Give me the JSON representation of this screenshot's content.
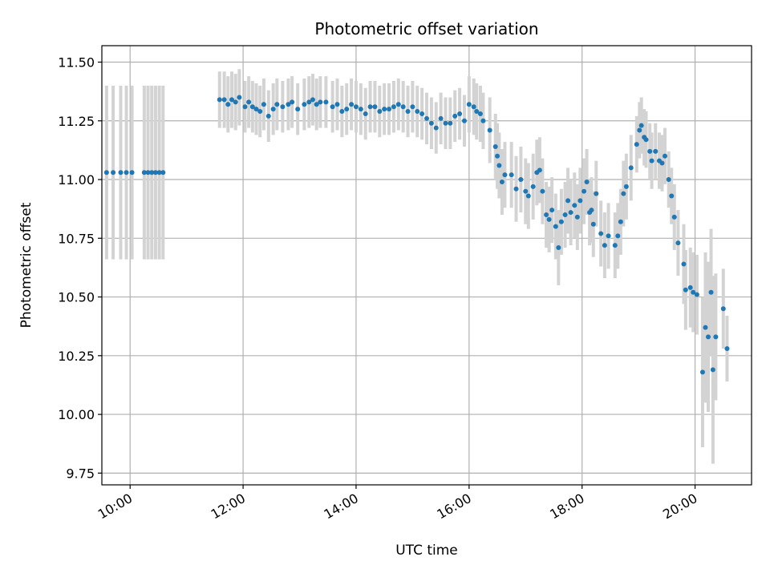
{
  "chart_data": {
    "type": "scatter",
    "title": "Photometric offset variation",
    "xlabel": "UTC time",
    "ylabel": "Photometric offset",
    "xlim": [
      "09:30",
      "21:00"
    ],
    "ylim": [
      9.7,
      11.57
    ],
    "x_ticks": [
      "10:00",
      "12:00",
      "14:00",
      "16:00",
      "18:00",
      "20:00"
    ],
    "y_ticks": [
      "9.75",
      "10.00",
      "10.25",
      "10.50",
      "10.75",
      "11.00",
      "11.25",
      "11.50"
    ],
    "grid": true,
    "colors": {
      "point": "#1f77b4",
      "errorbar": "#d3d3d3",
      "grid": "#b0b0b0"
    },
    "series": [
      {
        "points": [
          {
            "t": "09:35",
            "y": 11.03,
            "err": 0.37
          },
          {
            "t": "09:42",
            "y": 11.03,
            "err": 0.37
          },
          {
            "t": "09:50",
            "y": 11.03,
            "err": 0.37
          },
          {
            "t": "09:56",
            "y": 11.03,
            "err": 0.37
          },
          {
            "t": "10:02",
            "y": 11.03,
            "err": 0.37
          },
          {
            "t": "10:15",
            "y": 11.03,
            "err": 0.37
          },
          {
            "t": "10:19",
            "y": 11.03,
            "err": 0.37
          },
          {
            "t": "10:23",
            "y": 11.03,
            "err": 0.37
          },
          {
            "t": "10:27",
            "y": 11.03,
            "err": 0.37
          },
          {
            "t": "10:31",
            "y": 11.03,
            "err": 0.37
          },
          {
            "t": "10:35",
            "y": 11.03,
            "err": 0.37
          },
          {
            "t": "11:35",
            "y": 11.34,
            "err": 0.12
          },
          {
            "t": "11:40",
            "y": 11.34,
            "err": 0.12
          },
          {
            "t": "11:44",
            "y": 11.32,
            "err": 0.12
          },
          {
            "t": "11:48",
            "y": 11.34,
            "err": 0.12
          },
          {
            "t": "11:52",
            "y": 11.33,
            "err": 0.12
          },
          {
            "t": "11:56",
            "y": 11.35,
            "err": 0.12
          },
          {
            "t": "12:02",
            "y": 11.31,
            "err": 0.11
          },
          {
            "t": "12:06",
            "y": 11.33,
            "err": 0.11
          },
          {
            "t": "12:10",
            "y": 11.31,
            "err": 0.11
          },
          {
            "t": "12:14",
            "y": 11.3,
            "err": 0.11
          },
          {
            "t": "12:18",
            "y": 11.29,
            "err": 0.11
          },
          {
            "t": "12:22",
            "y": 11.32,
            "err": 0.11
          },
          {
            "t": "12:27",
            "y": 11.27,
            "err": 0.11
          },
          {
            "t": "12:32",
            "y": 11.3,
            "err": 0.11
          },
          {
            "t": "12:36",
            "y": 11.32,
            "err": 0.11
          },
          {
            "t": "12:42",
            "y": 11.31,
            "err": 0.11
          },
          {
            "t": "12:48",
            "y": 11.32,
            "err": 0.11
          },
          {
            "t": "12:52",
            "y": 11.33,
            "err": 0.11
          },
          {
            "t": "12:58",
            "y": 11.3,
            "err": 0.11
          },
          {
            "t": "13:05",
            "y": 11.32,
            "err": 0.11
          },
          {
            "t": "13:10",
            "y": 11.33,
            "err": 0.11
          },
          {
            "t": "13:14",
            "y": 11.34,
            "err": 0.11
          },
          {
            "t": "13:18",
            "y": 11.32,
            "err": 0.11
          },
          {
            "t": "13:22",
            "y": 11.33,
            "err": 0.11
          },
          {
            "t": "13:28",
            "y": 11.33,
            "err": 0.11
          },
          {
            "t": "13:35",
            "y": 11.31,
            "err": 0.11
          },
          {
            "t": "13:40",
            "y": 11.32,
            "err": 0.11
          },
          {
            "t": "13:45",
            "y": 11.29,
            "err": 0.11
          },
          {
            "t": "13:50",
            "y": 11.3,
            "err": 0.11
          },
          {
            "t": "13:55",
            "y": 11.32,
            "err": 0.11
          },
          {
            "t": "14:00",
            "y": 11.31,
            "err": 0.11
          },
          {
            "t": "14:05",
            "y": 11.3,
            "err": 0.11
          },
          {
            "t": "14:10",
            "y": 11.28,
            "err": 0.11
          },
          {
            "t": "14:15",
            "y": 11.31,
            "err": 0.11
          },
          {
            "t": "14:20",
            "y": 11.31,
            "err": 0.11
          },
          {
            "t": "14:25",
            "y": 11.29,
            "err": 0.11
          },
          {
            "t": "14:30",
            "y": 11.3,
            "err": 0.11
          },
          {
            "t": "14:35",
            "y": 11.3,
            "err": 0.11
          },
          {
            "t": "14:40",
            "y": 11.31,
            "err": 0.11
          },
          {
            "t": "14:45",
            "y": 11.32,
            "err": 0.11
          },
          {
            "t": "14:50",
            "y": 11.31,
            "err": 0.11
          },
          {
            "t": "14:55",
            "y": 11.29,
            "err": 0.11
          },
          {
            "t": "15:00",
            "y": 11.31,
            "err": 0.11
          },
          {
            "t": "15:05",
            "y": 11.29,
            "err": 0.11
          },
          {
            "t": "15:10",
            "y": 11.28,
            "err": 0.11
          },
          {
            "t": "15:15",
            "y": 11.26,
            "err": 0.11
          },
          {
            "t": "15:20",
            "y": 11.24,
            "err": 0.11
          },
          {
            "t": "15:25",
            "y": 11.22,
            "err": 0.11
          },
          {
            "t": "15:30",
            "y": 11.26,
            "err": 0.11
          },
          {
            "t": "15:35",
            "y": 11.24,
            "err": 0.11
          },
          {
            "t": "15:40",
            "y": 11.24,
            "err": 0.11
          },
          {
            "t": "15:45",
            "y": 11.27,
            "err": 0.11
          },
          {
            "t": "15:50",
            "y": 11.28,
            "err": 0.11
          },
          {
            "t": "15:55",
            "y": 11.25,
            "err": 0.11
          },
          {
            "t": "16:00",
            "y": 11.32,
            "err": 0.12
          },
          {
            "t": "16:05",
            "y": 11.31,
            "err": 0.12
          },
          {
            "t": "16:08",
            "y": 11.29,
            "err": 0.12
          },
          {
            "t": "16:12",
            "y": 11.28,
            "err": 0.12
          },
          {
            "t": "16:15",
            "y": 11.25,
            "err": 0.12
          },
          {
            "t": "16:22",
            "y": 11.21,
            "err": 0.14
          },
          {
            "t": "16:28",
            "y": 11.14,
            "err": 0.14
          },
          {
            "t": "16:30",
            "y": 11.1,
            "err": 0.14
          },
          {
            "t": "16:32",
            "y": 11.06,
            "err": 0.14
          },
          {
            "t": "16:35",
            "y": 10.99,
            "err": 0.14
          },
          {
            "t": "16:38",
            "y": 11.02,
            "err": 0.14
          },
          {
            "t": "16:45",
            "y": 11.02,
            "err": 0.14
          },
          {
            "t": "16:50",
            "y": 10.96,
            "err": 0.14
          },
          {
            "t": "16:55",
            "y": 11.0,
            "err": 0.14
          },
          {
            "t": "17:00",
            "y": 10.95,
            "err": 0.14
          },
          {
            "t": "17:03",
            "y": 10.93,
            "err": 0.14
          },
          {
            "t": "17:08",
            "y": 10.97,
            "err": 0.14
          },
          {
            "t": "17:12",
            "y": 11.03,
            "err": 0.14
          },
          {
            "t": "17:15",
            "y": 11.04,
            "err": 0.14
          },
          {
            "t": "17:18",
            "y": 10.95,
            "err": 0.14
          },
          {
            "t": "17:22",
            "y": 10.85,
            "err": 0.14
          },
          {
            "t": "17:25",
            "y": 10.83,
            "err": 0.14
          },
          {
            "t": "17:28",
            "y": 10.87,
            "err": 0.14
          },
          {
            "t": "17:32",
            "y": 10.8,
            "err": 0.14
          },
          {
            "t": "17:35",
            "y": 10.71,
            "err": 0.16
          },
          {
            "t": "17:38",
            "y": 10.82,
            "err": 0.14
          },
          {
            "t": "17:42",
            "y": 10.85,
            "err": 0.14
          },
          {
            "t": "17:45",
            "y": 10.91,
            "err": 0.14
          },
          {
            "t": "17:48",
            "y": 10.86,
            "err": 0.14
          },
          {
            "t": "17:52",
            "y": 10.89,
            "err": 0.14
          },
          {
            "t": "17:55",
            "y": 10.84,
            "err": 0.14
          },
          {
            "t": "17:58",
            "y": 10.91,
            "err": 0.14
          },
          {
            "t": "18:02",
            "y": 10.95,
            "err": 0.14
          },
          {
            "t": "18:05",
            "y": 10.99,
            "err": 0.14
          },
          {
            "t": "18:08",
            "y": 10.86,
            "err": 0.14
          },
          {
            "t": "18:10",
            "y": 10.87,
            "err": 0.14
          },
          {
            "t": "18:12",
            "y": 10.81,
            "err": 0.14
          },
          {
            "t": "18:15",
            "y": 10.94,
            "err": 0.14
          },
          {
            "t": "18:20",
            "y": 10.77,
            "err": 0.14
          },
          {
            "t": "18:24",
            "y": 10.72,
            "err": 0.14
          },
          {
            "t": "18:28",
            "y": 10.76,
            "err": 0.14
          },
          {
            "t": "18:35",
            "y": 10.72,
            "err": 0.14
          },
          {
            "t": "18:38",
            "y": 10.76,
            "err": 0.14
          },
          {
            "t": "18:41",
            "y": 10.82,
            "err": 0.14
          },
          {
            "t": "18:44",
            "y": 10.94,
            "err": 0.14
          },
          {
            "t": "18:47",
            "y": 10.97,
            "err": 0.14
          },
          {
            "t": "18:52",
            "y": 11.05,
            "err": 0.14
          },
          {
            "t": "18:58",
            "y": 11.15,
            "err": 0.12
          },
          {
            "t": "19:01",
            "y": 11.21,
            "err": 0.12
          },
          {
            "t": "19:03",
            "y": 11.23,
            "err": 0.12
          },
          {
            "t": "19:06",
            "y": 11.18,
            "err": 0.12
          },
          {
            "t": "19:08",
            "y": 11.17,
            "err": 0.12
          },
          {
            "t": "19:12",
            "y": 11.12,
            "err": 0.12
          },
          {
            "t": "19:14",
            "y": 11.08,
            "err": 0.12
          },
          {
            "t": "19:18",
            "y": 11.12,
            "err": 0.12
          },
          {
            "t": "19:22",
            "y": 11.08,
            "err": 0.12
          },
          {
            "t": "19:25",
            "y": 11.07,
            "err": 0.12
          },
          {
            "t": "19:28",
            "y": 11.1,
            "err": 0.12
          },
          {
            "t": "19:32",
            "y": 11.0,
            "err": 0.12
          },
          {
            "t": "19:35",
            "y": 10.93,
            "err": 0.12
          },
          {
            "t": "19:38",
            "y": 10.84,
            "err": 0.14
          },
          {
            "t": "19:42",
            "y": 10.73,
            "err": 0.14
          },
          {
            "t": "19:48",
            "y": 10.64,
            "err": 0.17
          },
          {
            "t": "19:50",
            "y": 10.53,
            "err": 0.17
          },
          {
            "t": "19:55",
            "y": 10.54,
            "err": 0.17
          },
          {
            "t": "19:58",
            "y": 10.52,
            "err": 0.17
          },
          {
            "t": "20:02",
            "y": 10.51,
            "err": 0.17
          },
          {
            "t": "20:08",
            "y": 10.18,
            "err": 0.32
          },
          {
            "t": "20:11",
            "y": 10.37,
            "err": 0.32
          },
          {
            "t": "20:14",
            "y": 10.33,
            "err": 0.32
          },
          {
            "t": "20:17",
            "y": 10.52,
            "err": 0.27
          },
          {
            "t": "20:19",
            "y": 10.19,
            "err": 0.4
          },
          {
            "t": "20:22",
            "y": 10.33,
            "err": 0.27
          },
          {
            "t": "20:30",
            "y": 10.45,
            "err": 0.17
          },
          {
            "t": "20:34",
            "y": 10.28,
            "err": 0.14
          }
        ]
      }
    ]
  }
}
